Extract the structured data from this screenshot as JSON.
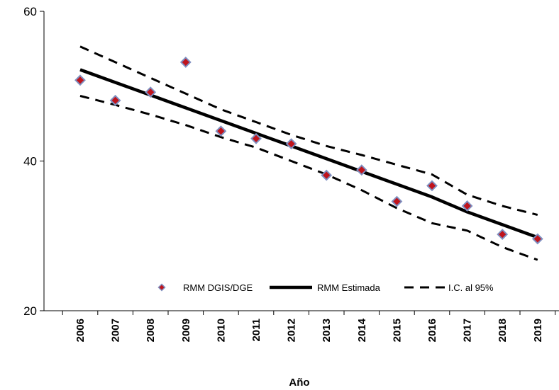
{
  "chart_data": {
    "type": "line",
    "title": "",
    "xlabel": "Año",
    "ylabel": "",
    "x": [
      2006,
      2007,
      2008,
      2009,
      2010,
      2011,
      2012,
      2013,
      2014,
      2015,
      2016,
      2017,
      2018,
      2019
    ],
    "y_ticks": [
      20,
      40,
      60
    ],
    "ylim": [
      20,
      60
    ],
    "grid": false,
    "legend_position": "bottom-center",
    "series": [
      {
        "name": "RMM DGIS/DGE",
        "kind": "scatter",
        "marker": "diamond",
        "values": [
          50.8,
          48.1,
          49.2,
          53.2,
          44.0,
          43.0,
          42.3,
          38.1,
          38.8,
          34.6,
          36.7,
          34.0,
          30.2,
          29.6
        ]
      },
      {
        "name": "RMM Estimada",
        "kind": "line",
        "style": "solid",
        "values": [
          52.2,
          50.5,
          48.8,
          47.1,
          45.4,
          43.7,
          42.0,
          40.3,
          38.6,
          36.9,
          35.2,
          33.2,
          31.5,
          29.8
        ]
      },
      {
        "name": "I.C. al 95%",
        "kind": "line",
        "style": "dashed",
        "values": [
          55.3,
          53.2,
          51.1,
          49.0,
          46.9,
          45.2,
          43.5,
          42.0,
          40.8,
          39.5,
          38.2,
          35.5,
          34.0,
          32.8
        ]
      },
      {
        "name": "I.C. al 95%",
        "kind": "line",
        "style": "dashed",
        "show_in_legend": false,
        "values": [
          48.7,
          47.5,
          46.2,
          44.8,
          43.2,
          41.8,
          40.0,
          38.2,
          36.1,
          33.7,
          31.7,
          30.7,
          28.5,
          26.8
        ]
      }
    ]
  },
  "colors": {
    "marker_fill": "#c0141c",
    "marker_stroke": "#7f8fc0",
    "line": "#000000"
  }
}
